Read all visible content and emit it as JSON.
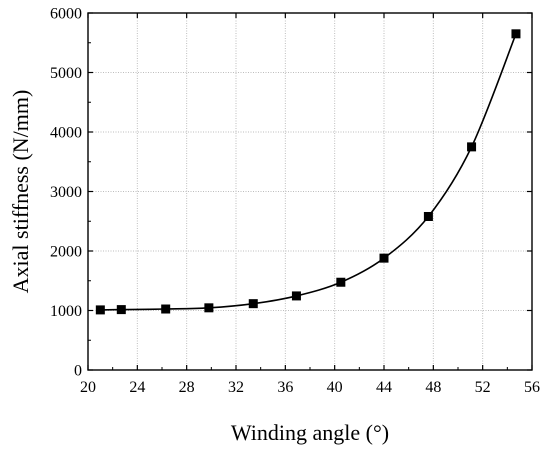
{
  "chart_data": {
    "type": "line",
    "title": "",
    "xlabel": "Winding angle (°)",
    "ylabel": "Axial stiffness (N/mm)",
    "xlim": [
      20,
      56
    ],
    "ylim": [
      0,
      6000
    ],
    "xticks": [
      20,
      24,
      28,
      32,
      36,
      40,
      44,
      48,
      52,
      56
    ],
    "yticks": [
      0,
      1000,
      2000,
      3000,
      4000,
      5000,
      6000
    ],
    "grid": true,
    "legend": "none",
    "series": [
      {
        "marker": "square",
        "color": "#000000",
        "x": [
          21,
          22.7,
          26.3,
          29.8,
          33.4,
          36.9,
          40.5,
          44,
          47.6,
          51.1,
          54.7
        ],
        "y": [
          1010,
          1015,
          1025,
          1045,
          1115,
          1245,
          1475,
          1880,
          2580,
          3750,
          5650
        ]
      }
    ]
  }
}
